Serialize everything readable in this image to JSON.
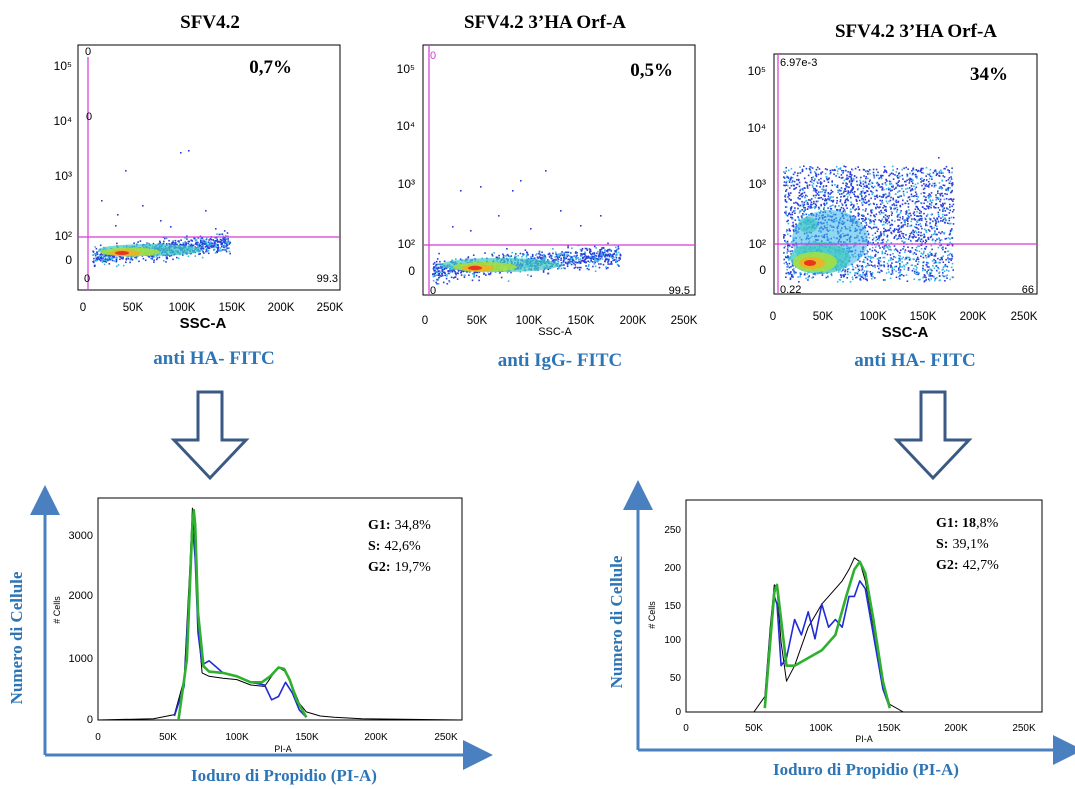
{
  "colors": {
    "gate": "#d63bd6",
    "label_blue": "#2e75b6",
    "arrow_stroke": "#3a5a84",
    "hist_black": "#000000",
    "hist_blue": "#1f2bd6",
    "hist_green": "#2fb02f"
  },
  "chart_data": [
    {
      "type": "scatter",
      "title": "SFV4.2",
      "xlabel": "SSC-A",
      "yticks": [
        "10⁵",
        "10⁴",
        "10³",
        "10²",
        "0"
      ],
      "xticks": [
        "0",
        "50K",
        "100K",
        "150K",
        "200K",
        "250K"
      ],
      "percent": "0,7%",
      "stain": "anti HA- FITC",
      "quadrant_labels": {
        "ul": "0",
        "um": "0",
        "ll": "0",
        "lr": "99.3"
      }
    },
    {
      "type": "scatter",
      "title": "SFV4.2 3’HA Orf-A",
      "xlabel": "SSC-A",
      "yticks": [
        "10⁵",
        "10⁴",
        "10³",
        "10²",
        "0"
      ],
      "xticks": [
        "0",
        "50K",
        "100K",
        "150K",
        "200K",
        "250K"
      ],
      "percent": "0,5%",
      "stain": "anti IgG- FITC",
      "quadrant_labels": {
        "ul": "0",
        "ll": "0",
        "lr": "99.5"
      }
    },
    {
      "type": "scatter",
      "title": "SFV4.2 3’HA Orf-A",
      "xlabel": "SSC-A",
      "yticks": [
        "10⁵",
        "10⁴",
        "10³",
        "10²",
        "0"
      ],
      "xticks": [
        "0",
        "50K",
        "100K",
        "150K",
        "200K",
        "250K"
      ],
      "percent": "34%",
      "stain": "anti HA- FITC",
      "quadrant_labels": {
        "ul": "6.97e-3",
        "ll": "0.22",
        "lr": "66"
      }
    },
    {
      "type": "line",
      "xlabel": "PI-A",
      "ylabel": "# Cells",
      "outer_xlabel": "Ioduro di Propidio (PI-A)",
      "outer_ylabel": "Numero di Cellule",
      "xticks": [
        "0",
        "50K",
        "100K",
        "150K",
        "200K",
        "250K"
      ],
      "yticks": [
        "3000",
        "2000",
        "1000",
        "0"
      ],
      "xlim": [
        0,
        262144
      ],
      "ylim": [
        0,
        3300
      ],
      "stats": [
        {
          "label": "G1:",
          "value": "34,8%"
        },
        {
          "label": "S:",
          "value": "42,6%"
        },
        {
          "label": "G2:",
          "value": "19,7%"
        }
      ],
      "series": [
        {
          "x": [
            0,
            40000,
            55000,
            62000,
            66000,
            68000,
            70000,
            72000,
            75000,
            80000,
            90000,
            100000,
            110000,
            120000,
            125000,
            130000,
            135000,
            140000,
            145000,
            150000,
            160000,
            170000,
            190000,
            220000,
            262144
          ],
          "values": [
            0,
            20,
            80,
            600,
            2200,
            3150,
            2600,
            1400,
            700,
            650,
            620,
            600,
            520,
            500,
            650,
            780,
            720,
            500,
            250,
            120,
            60,
            40,
            20,
            10,
            0
          ]
        },
        {
          "x": [
            55000,
            62000,
            66000,
            68000,
            70000,
            72000,
            75000,
            80000,
            90000,
            100000,
            110000,
            120000,
            125000,
            130000,
            135000,
            140000,
            145000,
            150000
          ],
          "values": [
            60,
            500,
            2000,
            2900,
            2400,
            1300,
            820,
            880,
            700,
            650,
            560,
            520,
            300,
            350,
            560,
            400,
            150,
            40
          ]
        },
        {
          "x": [
            58000,
            64000,
            68000,
            69000,
            70000,
            72000,
            76000,
            80000,
            90000,
            100000,
            110000,
            118000,
            124000,
            130000,
            134000,
            138000,
            143000,
            150000
          ],
          "values": [
            0,
            900,
            2900,
            3120,
            2900,
            1600,
            800,
            720,
            700,
            650,
            560,
            560,
            650,
            780,
            760,
            600,
            300,
            40
          ]
        }
      ]
    },
    {
      "type": "line",
      "xlabel": "PI-A",
      "ylabel": "# Cells",
      "outer_xlabel": "Ioduro di Propidio (PI-A)",
      "outer_ylabel": "Numero di Cellule",
      "xticks": [
        "0",
        "50K",
        "100K",
        "150K",
        "200K",
        "250K"
      ],
      "yticks": [
        "250",
        "200",
        "150",
        "100",
        "50",
        "0"
      ],
      "xlim": [
        0,
        262144
      ],
      "ylim": [
        0,
        275
      ],
      "stats": [
        {
          "label": "G1: 18",
          "value": ",8%"
        },
        {
          "label": "S:",
          "value": "39,1%"
        },
        {
          "label": "G2:",
          "value": "42,7%"
        }
      ],
      "series": [
        {
          "x": [
            0,
            50000,
            58000,
            62000,
            65000,
            67000,
            70000,
            74000,
            80000,
            90000,
            100000,
            110000,
            115000,
            120000,
            124000,
            128000,
            132000,
            138000,
            145000,
            150000,
            160000,
            262144
          ],
          "values": [
            0,
            0,
            20,
            110,
            165,
            160,
            90,
            40,
            60,
            110,
            140,
            160,
            170,
            185,
            200,
            195,
            170,
            110,
            40,
            10,
            0,
            0
          ]
        },
        {
          "x": [
            58000,
            62000,
            65000,
            67000,
            70000,
            74000,
            80000,
            85000,
            90000,
            95000,
            100000,
            105000,
            110000,
            115000,
            120000,
            124000,
            128000,
            132000,
            138000,
            145000,
            150000
          ],
          "values": [
            10,
            100,
            150,
            140,
            60,
            70,
            120,
            100,
            130,
            95,
            140,
            110,
            120,
            110,
            150,
            150,
            170,
            160,
            100,
            30,
            5
          ]
        },
        {
          "x": [
            58000,
            62000,
            65000,
            67000,
            70000,
            74000,
            80000,
            90000,
            100000,
            110000,
            118000,
            124000,
            128000,
            132000,
            138000,
            145000,
            150000
          ],
          "values": [
            5,
            90,
            155,
            165,
            120,
            60,
            60,
            70,
            80,
            100,
            150,
            185,
            195,
            180,
            120,
            40,
            5
          ]
        }
      ]
    }
  ]
}
